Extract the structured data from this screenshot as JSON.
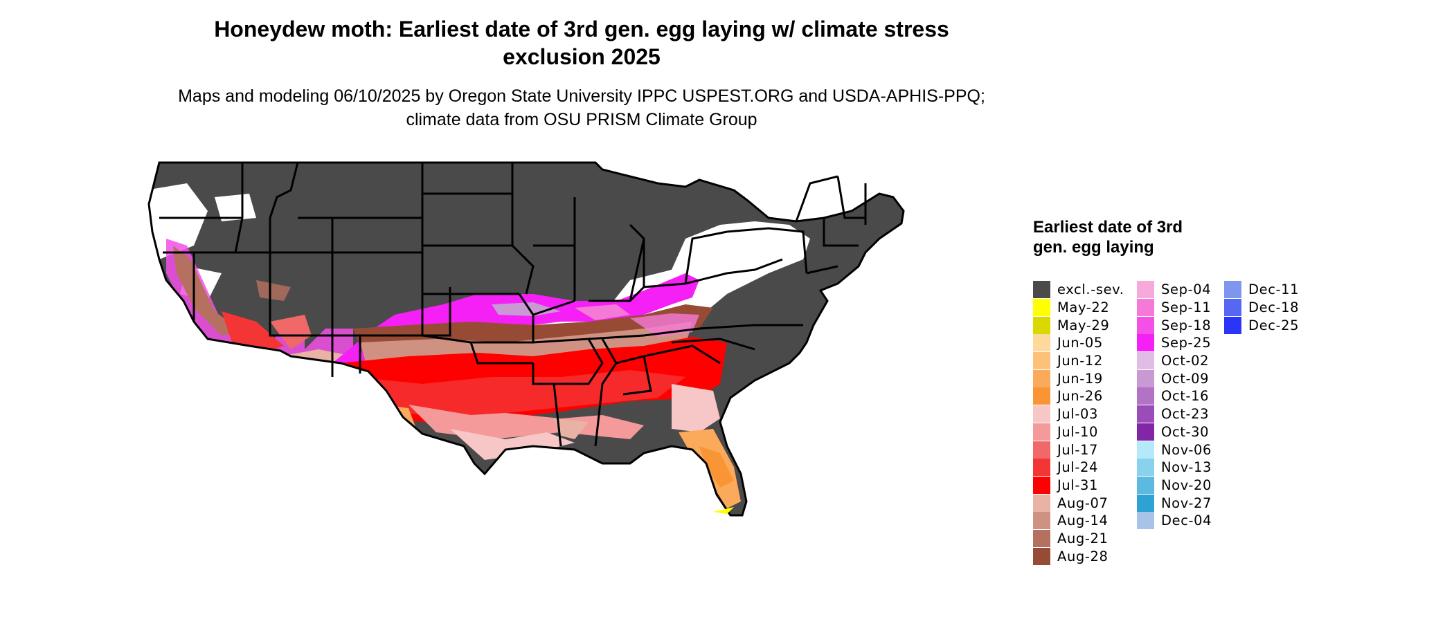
{
  "title": "Honeydew moth: Earliest date of 3rd gen. egg laying w/ climate stress exclusion 2025",
  "subtitle": "Maps and modeling 06/10/2025 by Oregon State University IPPC USPEST.ORG and USDA-APHIS-PPQ; climate data from OSU PRISM Climate Group",
  "legend": {
    "title": "Earliest date of 3rd gen. egg laying",
    "items": [
      {
        "label": "excl.-sev.",
        "color": "#4a4a4a"
      },
      {
        "label": "May-22",
        "color": "#ffff00"
      },
      {
        "label": "May-29",
        "color": "#d9d900"
      },
      {
        "label": "Jun-05",
        "color": "#fdd99b"
      },
      {
        "label": "Jun-12",
        "color": "#fcc27a"
      },
      {
        "label": "Jun-19",
        "color": "#fba95a"
      },
      {
        "label": "Jun-26",
        "color": "#fa9535"
      },
      {
        "label": "Jul-03",
        "color": "#f7c6c6"
      },
      {
        "label": "Jul-10",
        "color": "#f49a9a"
      },
      {
        "label": "Jul-17",
        "color": "#f06868"
      },
      {
        "label": "Jul-24",
        "color": "#f43535"
      },
      {
        "label": "Jul-31",
        "color": "#ff0000"
      },
      {
        "label": "Aug-07",
        "color": "#e8b2a4"
      },
      {
        "label": "Aug-14",
        "color": "#cf9282"
      },
      {
        "label": "Aug-21",
        "color": "#b5705f"
      },
      {
        "label": "Aug-28",
        "color": "#974a34"
      },
      {
        "label": "Sep-04",
        "color": "#f7a9dc"
      },
      {
        "label": "Sep-11",
        "color": "#f57ad8"
      },
      {
        "label": "Sep-18",
        "color": "#f250e6"
      },
      {
        "label": "Sep-25",
        "color": "#f520f5"
      },
      {
        "label": "Oct-02",
        "color": "#e0bde4"
      },
      {
        "label": "Oct-09",
        "color": "#c999d4"
      },
      {
        "label": "Oct-16",
        "color": "#b272c6"
      },
      {
        "label": "Oct-23",
        "color": "#9b4cb8"
      },
      {
        "label": "Oct-30",
        "color": "#8226a8"
      },
      {
        "label": "Nov-06",
        "color": "#b4e8fa"
      },
      {
        "label": "Nov-13",
        "color": "#89d2ed"
      },
      {
        "label": "Nov-20",
        "color": "#5cbae0"
      },
      {
        "label": "Nov-27",
        "color": "#2ea2d3"
      },
      {
        "label": "Dec-04",
        "color": "#a8c3e8"
      },
      {
        "label": "Dec-11",
        "color": "#7f96ee"
      },
      {
        "label": "Dec-18",
        "color": "#5668f3"
      },
      {
        "label": "Dec-25",
        "color": "#2a35f9"
      }
    ]
  }
}
